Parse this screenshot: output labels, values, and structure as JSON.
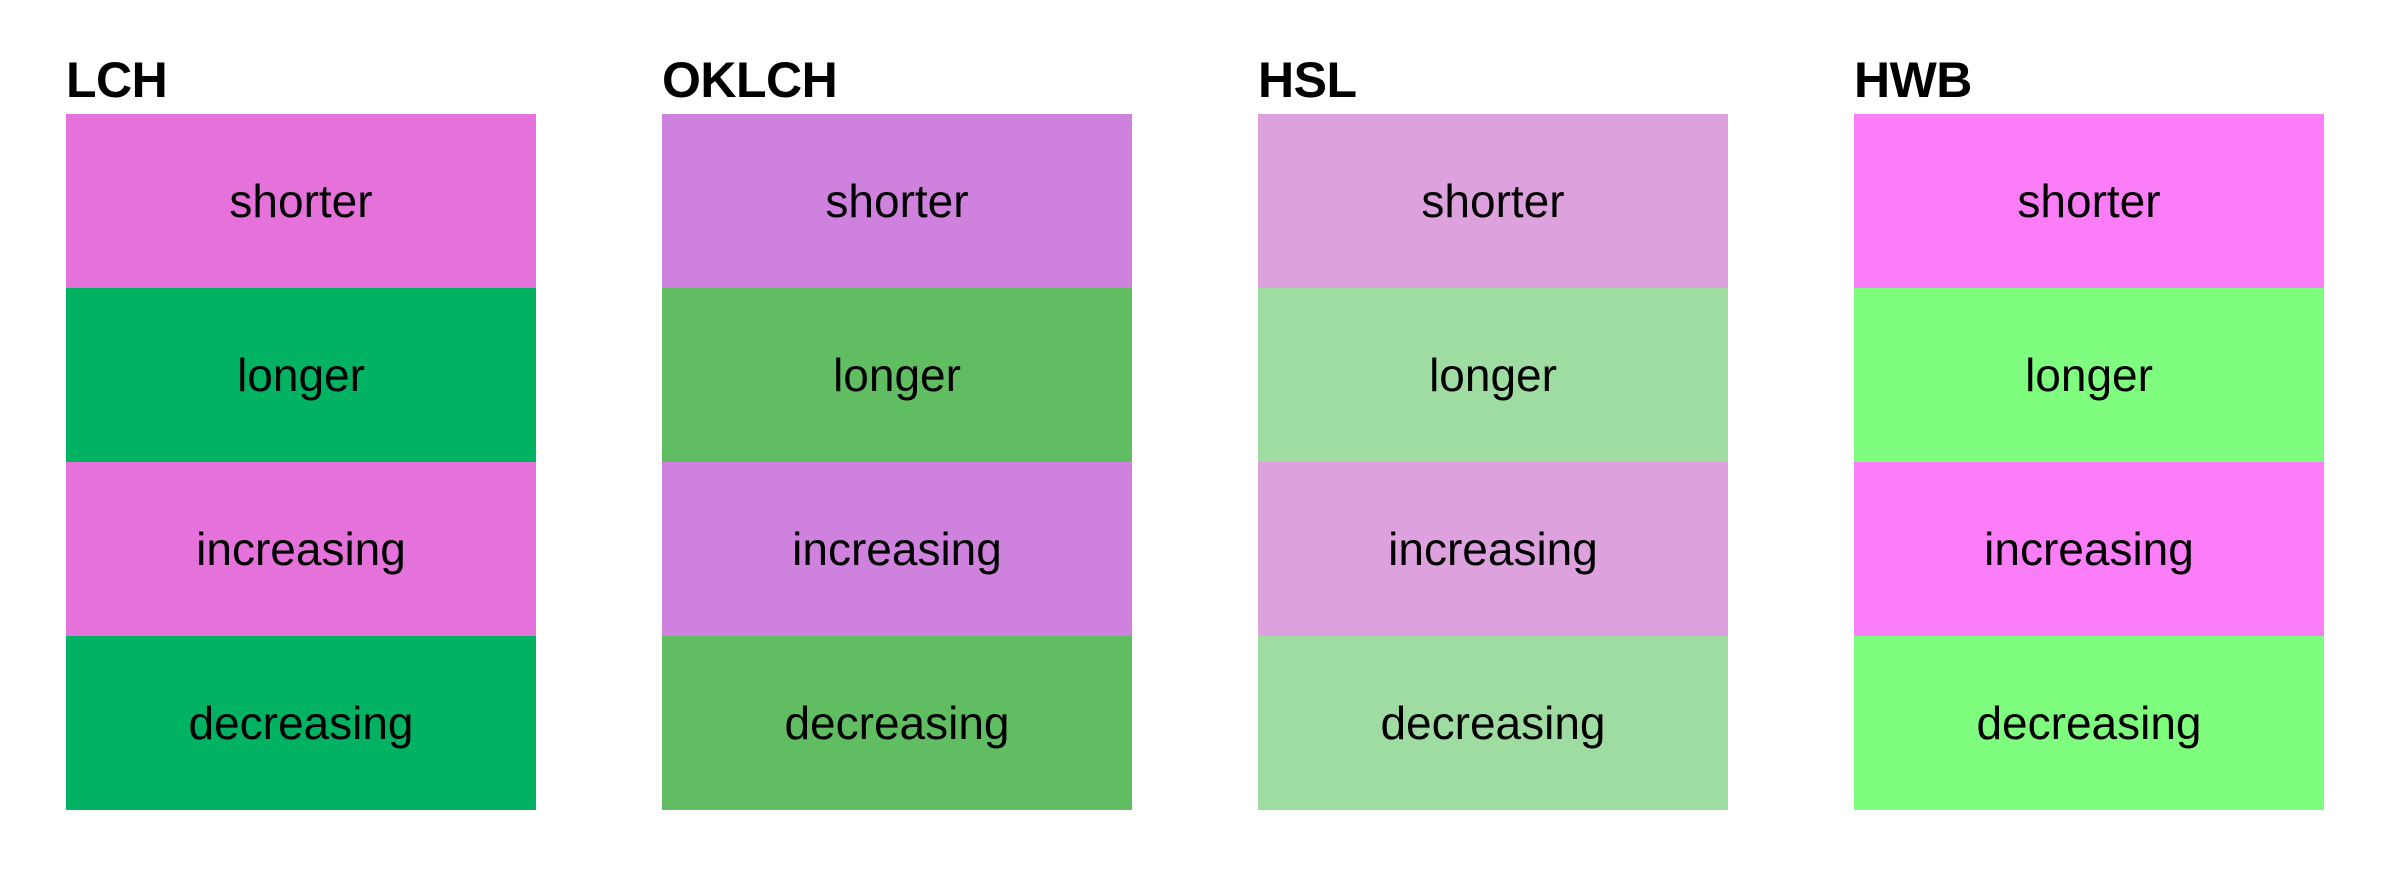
{
  "page": {
    "background": "#ffffff",
    "text_color": "#000000"
  },
  "columns": [
    {
      "title": "LCH",
      "swatches": [
        {
          "label": "shorter",
          "color": "#e572da"
        },
        {
          "label": "longer",
          "color": "#00b262"
        },
        {
          "label": "increasing",
          "color": "#e572da"
        },
        {
          "label": "decreasing",
          "color": "#00b262"
        }
      ]
    },
    {
      "title": "OKLCH",
      "swatches": [
        {
          "label": "shorter",
          "color": "#cf81de"
        },
        {
          "label": "longer",
          "color": "#60bd62"
        },
        {
          "label": "increasing",
          "color": "#cf81de"
        },
        {
          "label": "decreasing",
          "color": "#60bd62"
        }
      ]
    },
    {
      "title": "HSL",
      "swatches": [
        {
          "label": "shorter",
          "color": "#dda1dd"
        },
        {
          "label": "longer",
          "color": "#9fdca1"
        },
        {
          "label": "increasing",
          "color": "#dda1dd"
        },
        {
          "label": "decreasing",
          "color": "#9fdca1"
        }
      ]
    },
    {
      "title": "HWB",
      "swatches": [
        {
          "label": "shorter",
          "color": "#fc7df8"
        },
        {
          "label": "longer",
          "color": "#7ffd7e"
        },
        {
          "label": "increasing",
          "color": "#fc7df8"
        },
        {
          "label": "decreasing",
          "color": "#7ffd7e"
        }
      ]
    }
  ]
}
